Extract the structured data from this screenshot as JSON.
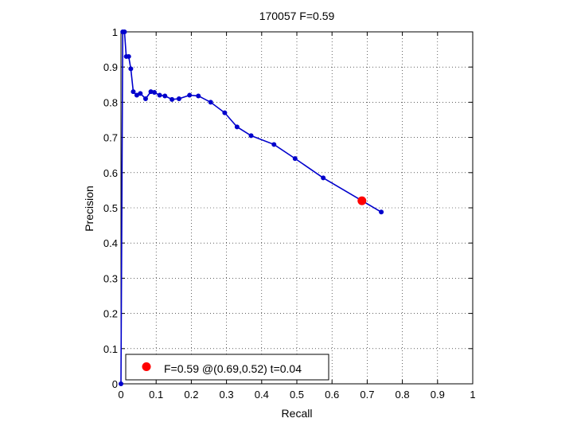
{
  "chart_data": {
    "type": "line",
    "title": "170057 F=0.59",
    "xlabel": "Recall",
    "ylabel": "Precision",
    "xlim": [
      0,
      1
    ],
    "ylim": [
      0,
      1
    ],
    "grid": true,
    "grid_style": "dotted",
    "x_ticks": [
      "0",
      "0.1",
      "0.2",
      "0.3",
      "0.4",
      "0.5",
      "0.6",
      "0.7",
      "0.8",
      "0.9",
      "1"
    ],
    "y_ticks": [
      "0",
      "0.1",
      "0.2",
      "0.3",
      "0.4",
      "0.5",
      "0.6",
      "0.7",
      "0.8",
      "0.9",
      "1"
    ],
    "series": [
      {
        "color": "#0000cc",
        "marker": "dot",
        "points": [
          [
            0,
            0
          ],
          [
            0.005,
            1.0
          ],
          [
            0.01,
            1.0
          ],
          [
            0.015,
            0.93
          ],
          [
            0.022,
            0.93
          ],
          [
            0.028,
            0.895
          ],
          [
            0.035,
            0.83
          ],
          [
            0.045,
            0.82
          ],
          [
            0.055,
            0.825
          ],
          [
            0.07,
            0.81
          ],
          [
            0.085,
            0.83
          ],
          [
            0.095,
            0.828
          ],
          [
            0.11,
            0.82
          ],
          [
            0.125,
            0.818
          ],
          [
            0.145,
            0.808
          ],
          [
            0.165,
            0.81
          ],
          [
            0.195,
            0.82
          ],
          [
            0.22,
            0.818
          ],
          [
            0.255,
            0.8
          ],
          [
            0.295,
            0.77
          ],
          [
            0.33,
            0.73
          ],
          [
            0.37,
            0.705
          ],
          [
            0.435,
            0.68
          ],
          [
            0.495,
            0.64
          ],
          [
            0.575,
            0.585
          ],
          [
            0.74,
            0.488
          ]
        ]
      }
    ],
    "highlight": {
      "x": 0.685,
      "y": 0.52,
      "color": "#ff0000"
    },
    "legend": {
      "position": "bottom-left",
      "label": "F=0.59 @(0.69,0.52) t=0.04"
    }
  }
}
